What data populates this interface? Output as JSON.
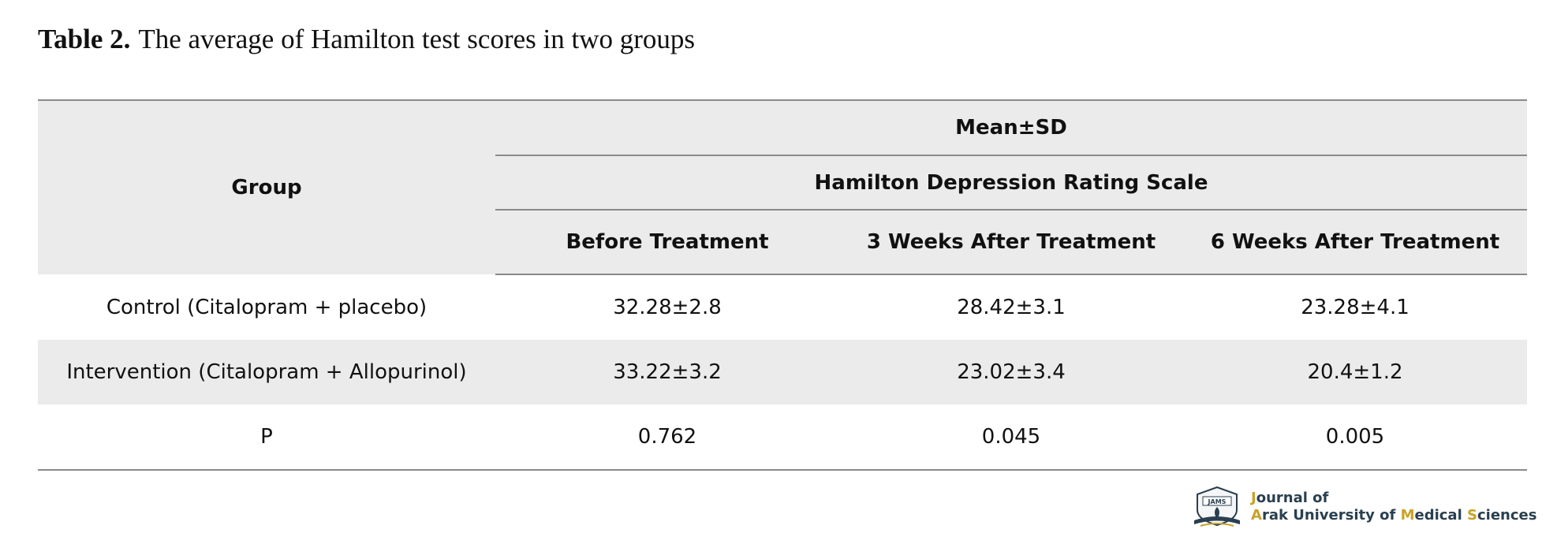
{
  "caption": {
    "label": "Table 2.",
    "text": "The average of Hamilton test scores in two groups"
  },
  "table": {
    "group_header": "Group",
    "stat_header": "Mean±SD",
    "scale_header": "Hamilton Depression Rating Scale",
    "columns": [
      "Before Treatment",
      "3 Weeks After Treatment",
      "6 Weeks After Treatment"
    ],
    "rows": [
      {
        "group": "Control (Citalopram + placebo)",
        "values": [
          "32.28±2.8",
          "28.42±3.1",
          "23.28±4.1"
        ]
      },
      {
        "group": "Intervention (Citalopram + Allopurinol)",
        "values": [
          "33.22±3.2",
          "23.02±3.4",
          "20.4±1.2"
        ]
      },
      {
        "group": "P",
        "values": [
          "0.762",
          "0.045",
          "0.005"
        ]
      }
    ]
  },
  "logo": {
    "emblem_text": "JAMS",
    "line1_initial": "J",
    "line1_rest": "ournal of",
    "line2_a": "A",
    "line2_b": "rak University of ",
    "line2_m": "M",
    "line2_c": "edical ",
    "line2_s": "S",
    "line2_d": "ciences",
    "accent_color": "#c9a227",
    "text_color": "#2a3f4f"
  }
}
